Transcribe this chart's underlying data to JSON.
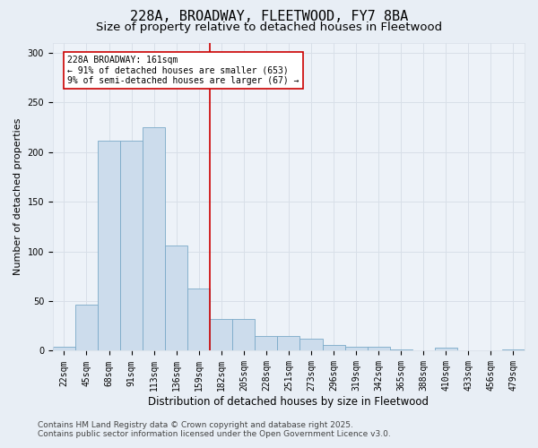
{
  "title": "228A, BROADWAY, FLEETWOOD, FY7 8BA",
  "subtitle": "Size of property relative to detached houses in Fleetwood",
  "xlabel": "Distribution of detached houses by size in Fleetwood",
  "ylabel": "Number of detached properties",
  "categories": [
    "22sqm",
    "45sqm",
    "68sqm",
    "91sqm",
    "113sqm",
    "136sqm",
    "159sqm",
    "182sqm",
    "205sqm",
    "228sqm",
    "251sqm",
    "273sqm",
    "296sqm",
    "319sqm",
    "342sqm",
    "365sqm",
    "388sqm",
    "410sqm",
    "433sqm",
    "456sqm",
    "479sqm"
  ],
  "values": [
    4,
    46,
    211,
    211,
    225,
    106,
    63,
    32,
    32,
    15,
    15,
    12,
    6,
    4,
    4,
    1,
    0,
    3,
    0,
    0,
    1
  ],
  "bar_color": "#ccdcec",
  "bar_edge_color": "#7aaac8",
  "vline_color": "#cc0000",
  "vline_index": 6,
  "annotation_text": "228A BROADWAY: 161sqm\n← 91% of detached houses are smaller (653)\n9% of semi-detached houses are larger (67) →",
  "annotation_box_facecolor": "#ffffff",
  "annotation_box_edgecolor": "#cc0000",
  "footer_line1": "Contains HM Land Registry data © Crown copyright and database right 2025.",
  "footer_line2": "Contains public sector information licensed under the Open Government Licence v3.0.",
  "ylim_max": 310,
  "bg_color": "#e8eef5",
  "plot_bg_color": "#edf2f8",
  "grid_color": "#d8dfe8",
  "title_fontsize": 11,
  "subtitle_fontsize": 9.5,
  "ylabel_fontsize": 8,
  "xlabel_fontsize": 8.5,
  "tick_fontsize": 7,
  "footer_fontsize": 6.5,
  "annotation_fontsize": 7
}
